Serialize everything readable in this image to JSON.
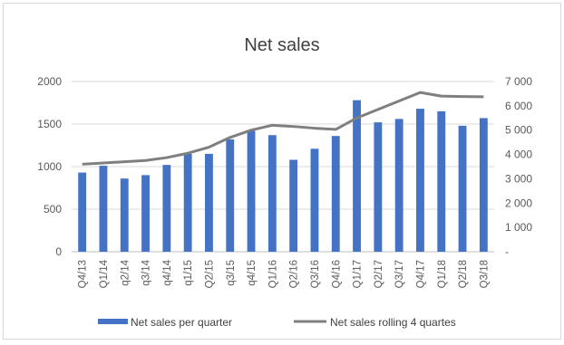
{
  "chart_data": {
    "type": "bar+line",
    "title": "Net sales",
    "categories": [
      "Q4/13",
      "Q1/14",
      "q2/14",
      "q3/14",
      "q4/14",
      "q1/15",
      "Q2/15",
      "q3/15",
      "q4/15",
      "Q1/16",
      "Q2/16",
      "Q3/16",
      "Q4/16",
      "Q1/17",
      "Q2/17",
      "Q3/17",
      "Q4/17",
      "Q1/18",
      "Q2/18",
      "Q3/18"
    ],
    "series": [
      {
        "name": "Net sales per quarter",
        "type": "bar",
        "axis": "left",
        "color": "#4472c4",
        "values": [
          930,
          1010,
          860,
          900,
          1020,
          1150,
          1150,
          1320,
          1420,
          1370,
          1080,
          1210,
          1360,
          1780,
          1520,
          1560,
          1680,
          1650,
          1480,
          1570
        ]
      },
      {
        "name": "Net sales rolling 4 quartes",
        "type": "line",
        "axis": "right",
        "color": "#7f7f7f",
        "values": [
          3600,
          3650,
          3700,
          3750,
          3870,
          4050,
          4300,
          4700,
          5000,
          5200,
          5150,
          5080,
          5030,
          5500,
          5850,
          6200,
          6550,
          6400,
          6380,
          6370
        ]
      }
    ],
    "y_left": {
      "min": 0,
      "max": 2000,
      "ticks": [
        "0",
        "500",
        "1000",
        "1500",
        "2000"
      ]
    },
    "y_right": {
      "min": 0,
      "max": 7000,
      "ticks": [
        "-",
        "1 000",
        "2 000",
        "3 000",
        "4 000",
        "5 000",
        "6 000",
        "7 000"
      ]
    },
    "grid": true,
    "legend_position": "bottom"
  }
}
